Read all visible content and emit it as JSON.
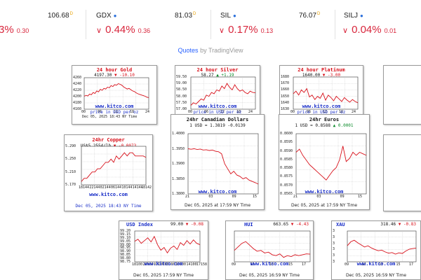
{
  "ticker": [
    {
      "symbol": "",
      "price": "",
      "pct": "3%",
      "chg": "0.30",
      "show_chev": false
    },
    {
      "symbol": "",
      "price": "106.68",
      "pct": "",
      "chg": "",
      "show_chev": false
    },
    {
      "symbol": "GDX",
      "price": "81.03",
      "pct": "0.44%",
      "chg": "0.36",
      "show_chev": true
    },
    {
      "symbol": "SIL",
      "price": "76.07",
      "pct": "0.17%",
      "chg": "0.13",
      "show_chev": true
    },
    {
      "symbol": "SILJ",
      "price": "",
      "pct": "0.04%",
      "chg": "0.01",
      "show_chev": true
    }
  ],
  "quotes_bar": {
    "quotes": "Quotes",
    "by": "by",
    "brand": "TradingView"
  },
  "colors": {
    "down": "#d8263c",
    "plot_line": "#d8101a",
    "watermark": "#1a2fc8",
    "up": "#0a8a2a"
  },
  "charts": [
    {
      "key": "gold",
      "title": "24 hour Gold",
      "sub_left": "4197.30",
      "sub_arrow": "down",
      "sub_right": "-10.10",
      "watermark": "www.kitco.com",
      "foot": "price in USD per oz",
      "foot_style": "blue",
      "xstamp": "Dec 05, 2025 18:43 NY Time",
      "yticks": [
        "4260",
        "4240",
        "4220",
        "4200",
        "4180",
        "4160"
      ],
      "xticks": [
        "00",
        "06",
        "12",
        "18",
        "24"
      ],
      "chart_data": {
        "type": "line",
        "title": "24 hour Gold",
        "ylim": [
          4160,
          4260
        ],
        "values": [
          4201,
          4204,
          4202,
          4208,
          4206,
          4213,
          4210,
          4218,
          4215,
          4223,
          4220,
          4226,
          4224,
          4230,
          4228,
          4235,
          4232,
          4238,
          4236,
          4241,
          4239,
          4236,
          4231,
          4227,
          4224,
          4226,
          4222,
          4218,
          4216,
          4212,
          4209,
          4207,
          4205,
          4203,
          4201,
          4198,
          4197
        ]
      }
    },
    {
      "key": "silver",
      "title": "24 hour Silver",
      "sub_left": "58.27",
      "sub_arrow": "up",
      "sub_right": "+1.19",
      "watermark": "www.kitco.com",
      "foot": "price in USD per oz",
      "foot_style": "blue",
      "xstamp": "",
      "yticks": [
        "59.50",
        "59.00",
        "58.50",
        "58.00",
        "57.50",
        "57.00"
      ],
      "xticks": [
        "00",
        "06",
        "12",
        "18",
        "24"
      ],
      "chart_data": {
        "type": "line",
        "title": "24 hour Silver",
        "ylim": [
          57.0,
          59.5
        ],
        "values": [
          57.3,
          57.5,
          57.4,
          57.6,
          57.8,
          57.7,
          58.1,
          58.0,
          58.3,
          58.2,
          58.5,
          58.4,
          58.8,
          58.6,
          59.0,
          58.7,
          58.5,
          58.9,
          58.6,
          58.4,
          58.5,
          58.3,
          58.2,
          58.4,
          58.3,
          58.27
        ]
      }
    },
    {
      "key": "platinum",
      "title": "24 hour Platinum",
      "sub_left": "1640.00",
      "sub_arrow": "down",
      "sub_right": "-3.00",
      "watermark": "www.kitco.com",
      "foot": "price in USD per oz",
      "foot_style": "blue",
      "xstamp": "",
      "yticks": [
        "1680",
        "1670",
        "1660",
        "1650",
        "1640",
        "1630"
      ],
      "xticks": [
        "00",
        "06",
        "12",
        "18",
        "24"
      ],
      "chart_data": {
        "type": "line",
        "title": "24 hour Platinum",
        "ylim": [
          1630,
          1680
        ],
        "values": [
          1654,
          1658,
          1652,
          1660,
          1656,
          1662,
          1649,
          1652,
          1645,
          1650,
          1647,
          1655,
          1644,
          1652,
          1648,
          1643,
          1650,
          1646,
          1642,
          1648,
          1644,
          1641,
          1645,
          1642,
          1640
        ]
      }
    },
    {
      "key": "copper",
      "title": "24hr Copper",
      "sub_left": "US$5.2554/lb",
      "sub_arrow": "down",
      "sub_right": "-0.0073",
      "watermark": "www.kitco.com",
      "foot": "Dec 05, 2025 18:43 NY Time",
      "foot_style": "blue",
      "xstamp": "",
      "yticks": [
        "5.290",
        "5.250",
        "5.210",
        "5.170"
      ],
      "xticks": [
        "18144",
        "20144",
        "22144",
        "00144",
        "02144",
        "04144",
        "06144",
        "08144",
        "10144",
        "12144",
        "14144",
        "16144",
        "18142"
      ],
      "chart_data": {
        "type": "line",
        "title": "24hr Copper",
        "ylim": [
          5.17,
          5.29
        ],
        "values": [
          5.18,
          5.19,
          5.19,
          5.2,
          5.21,
          5.21,
          5.22,
          5.22,
          5.23,
          5.24,
          5.24,
          5.25,
          5.24,
          5.26,
          5.25,
          5.26,
          5.27,
          5.26,
          5.27,
          5.27,
          5.26,
          5.26,
          5.26,
          5.26,
          5.2554
        ]
      }
    },
    {
      "key": "cad",
      "title": "24hr Canadian Dollars",
      "sub_left": "1 USD = 1.3819",
      "sub_arrow": "",
      "sub_right": "-0.0139",
      "watermark": "www.kitco.com",
      "foot": "Dec 05, 2025 at 17:59 NY Time",
      "foot_style": "black",
      "xstamp": "",
      "yticks": [
        "1.4000",
        "1.3950",
        "1.3900",
        "1.3850",
        "1.3800"
      ],
      "xticks": [
        "21",
        "03",
        "09",
        "15"
      ],
      "chart_data": {
        "type": "line",
        "title": "24hr Canadian Dollars",
        "ylim": [
          1.378,
          1.402
        ],
        "values": [
          1.396,
          1.3958,
          1.396,
          1.3957,
          1.3959,
          1.3955,
          1.3956,
          1.3953,
          1.3955,
          1.395,
          1.3948,
          1.394,
          1.39,
          1.388,
          1.386,
          1.387,
          1.3855,
          1.385,
          1.384,
          1.3845,
          1.3835,
          1.383,
          1.3825,
          1.3819
        ]
      }
    },
    {
      "key": "eur",
      "title": "24hr Euros",
      "sub_left": "1 USD = 0.8588",
      "sub_arrow": "up",
      "sub_right": "0.0001",
      "watermark": "www.kitco.com",
      "foot": "Dec 05, 2025 at 17:59 NY Time",
      "foot_style": "black",
      "xstamp": "",
      "yticks": [
        "0.8600",
        "0.8595",
        "0.8590",
        "0.8585",
        "0.8580",
        "0.8575",
        "0.8570",
        "0.8565"
      ],
      "xticks": [
        "21",
        "03",
        "09",
        "15"
      ],
      "chart_data": {
        "type": "line",
        "title": "24hr Euros",
        "ylim": [
          0.8563,
          0.8602
        ],
        "values": [
          0.859,
          0.8592,
          0.8588,
          0.8585,
          0.8582,
          0.858,
          0.8578,
          0.8576,
          0.8574,
          0.8572,
          0.8575,
          0.8578,
          0.858,
          0.8585,
          0.8594,
          0.8584,
          0.8586,
          0.859,
          0.8588,
          0.859,
          0.8589,
          0.8588
        ]
      }
    },
    {
      "key": "usdx",
      "title": "USD Index",
      "sub_left": "99.00",
      "sub_arrow": "down",
      "sub_right": "-0.08",
      "watermark": "www.kitco.com",
      "foot": "Dec 05, 2025 17:59 NY Time",
      "foot_style": "black",
      "xstamp": "",
      "yticks": [
        "99.20",
        "99.15",
        "99.10",
        "99.05",
        "99.00",
        "98.95",
        "98.90",
        "98.85",
        "98.80",
        "98.75"
      ],
      "xticks": [
        "18100",
        "20100",
        "22100",
        "00100",
        "02100",
        "04100",
        "06100",
        "08100",
        "10100",
        "12100",
        "14100",
        "16100",
        "17158"
      ],
      "chart_data": {
        "type": "line",
        "title": "USD Index",
        "ylim": [
          98.75,
          99.2
        ],
        "values": [
          99.05,
          99.08,
          99.02,
          99.06,
          99.1,
          99.04,
          99.12,
          99.0,
          98.92,
          98.96,
          98.88,
          98.95,
          98.98,
          98.93,
          99.03,
          98.99,
          99.06,
          99.01,
          99.07,
          99.02,
          99.0
        ]
      }
    },
    {
      "key": "hui",
      "title": "HUI",
      "sub_left": "663.65",
      "sub_arrow": "down",
      "sub_right": "-4.43",
      "watermark": "www.kitco.com",
      "foot": "Dec 05, 2025 16:59 NY Time",
      "foot_style": "black",
      "xstamp": "",
      "yticks": [],
      "xticks": [
        "09",
        "11",
        "13",
        "15",
        "17"
      ],
      "chart_data": {
        "type": "line",
        "title": "HUI",
        "ylim": [
          655,
          690
        ],
        "values": [
          668,
          672,
          676,
          678,
          674,
          670,
          667,
          668,
          665,
          666,
          663,
          662,
          664,
          660,
          662,
          661,
          663,
          662,
          663,
          664,
          663.65
        ]
      }
    },
    {
      "key": "xau",
      "title": "XAU",
      "sub_left": "318.46",
      "sub_arrow": "down",
      "sub_right": "-0.83",
      "watermark": "www.kitco.com",
      "foot": "Dec 05, 2025 16:59 NY Time",
      "foot_style": "black",
      "xstamp": "",
      "yticks": [
        "3",
        "3",
        "3",
        "3",
        "3",
        "3"
      ],
      "xticks": [
        "09",
        "11",
        "13",
        "15",
        "17"
      ],
      "chart_data": {
        "type": "line",
        "title": "XAU",
        "ylim": [
          314,
          324
        ],
        "values": [
          319.2,
          320.5,
          321.0,
          320.2,
          319.5,
          318.8,
          319.2,
          318.5,
          318.0,
          317.6,
          317.8,
          317.2,
          316.8,
          317.0,
          316.5,
          316.9,
          316.7,
          317.5,
          318.1,
          318.3,
          318.46
        ]
      }
    }
  ]
}
